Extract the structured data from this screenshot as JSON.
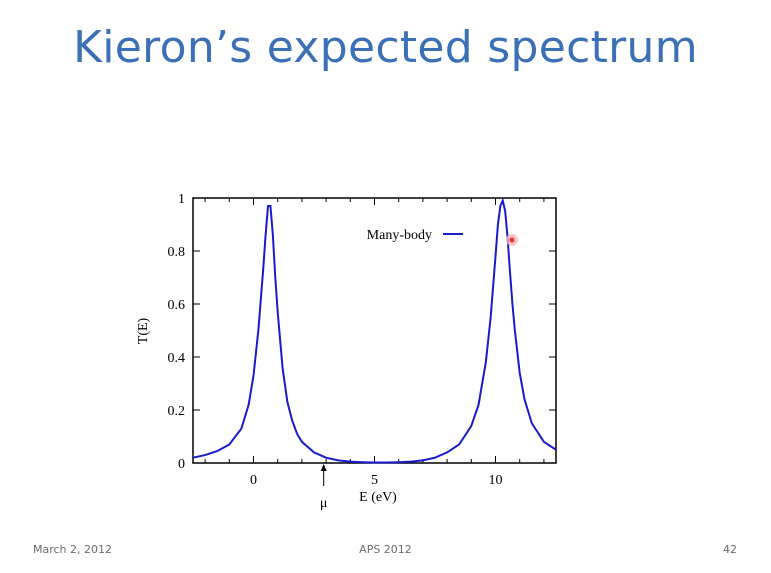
{
  "slide": {
    "title": "Kieron’s expected spectrum",
    "footer_date": "March 2, 2012",
    "footer_center": "APS 2012",
    "page_number": "42"
  },
  "chart_data": {
    "type": "line",
    "title": "",
    "xlabel": "E (eV)",
    "ylabel": "T(E)",
    "xlim": [
      -2.5,
      12.5
    ],
    "ylim": [
      0,
      1
    ],
    "x_ticks": [
      0,
      5,
      10
    ],
    "y_ticks": [
      0,
      0.2,
      0.4,
      0.6,
      0.8,
      1
    ],
    "y_tick_labels": [
      "0",
      "0.2",
      "0.4",
      "0.6",
      "0.8",
      "1"
    ],
    "x_tick_labels": [
      "0",
      "5",
      "10"
    ],
    "legend_position": "top-right",
    "grid": false,
    "series": [
      {
        "name": "Many-body",
        "color": "#1a1acc",
        "x": [
          -2.5,
          -2.0,
          -1.5,
          -1.0,
          -0.5,
          -0.2,
          0.0,
          0.2,
          0.4,
          0.5,
          0.6,
          0.7,
          0.8,
          0.9,
          1.0,
          1.2,
          1.4,
          1.6,
          1.8,
          2.0,
          2.5,
          3.0,
          3.5,
          4.0,
          4.5,
          5.0,
          5.5,
          6.0,
          6.5,
          7.0,
          7.5,
          8.0,
          8.5,
          9.0,
          9.3,
          9.6,
          9.8,
          10.0,
          10.1,
          10.2,
          10.3,
          10.4,
          10.5,
          10.6,
          10.7,
          10.8,
          11.0,
          11.2,
          11.5,
          12.0,
          12.5
        ],
        "y": [
          0.02,
          0.03,
          0.045,
          0.07,
          0.13,
          0.22,
          0.33,
          0.5,
          0.73,
          0.86,
          0.97,
          0.97,
          0.86,
          0.7,
          0.57,
          0.36,
          0.23,
          0.16,
          0.11,
          0.08,
          0.04,
          0.02,
          0.01,
          0.005,
          0.003,
          0.002,
          0.002,
          0.003,
          0.005,
          0.01,
          0.02,
          0.04,
          0.07,
          0.14,
          0.22,
          0.38,
          0.55,
          0.78,
          0.9,
          0.97,
          0.99,
          0.95,
          0.85,
          0.72,
          0.6,
          0.5,
          0.34,
          0.24,
          0.15,
          0.08,
          0.05
        ]
      }
    ],
    "annotations": [
      {
        "label": "μ",
        "x": 2.9
      }
    ]
  }
}
